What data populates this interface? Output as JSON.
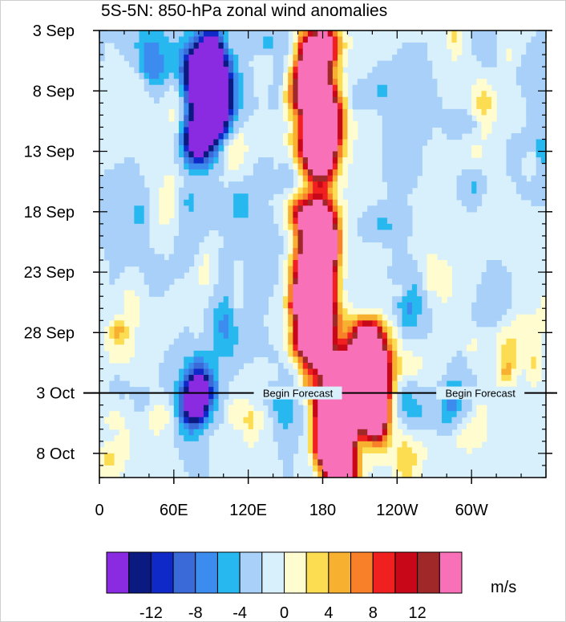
{
  "chart_data": {
    "type": "heatmap",
    "title": "5S-5N: 850-hPa zonal wind anomalies",
    "x_ticks": [
      {
        "label": "0",
        "lon": 0
      },
      {
        "label": "60E",
        "lon": 60
      },
      {
        "label": "120E",
        "lon": 120
      },
      {
        "label": "180",
        "lon": 180
      },
      {
        "label": "120W",
        "lon": 240
      },
      {
        "label": "60W",
        "lon": 300
      }
    ],
    "x_range_lon": [
      0,
      360
    ],
    "y_ticks": [
      {
        "label": "3 Sep",
        "day": 0
      },
      {
        "label": "8 Sep",
        "day": 5
      },
      {
        "label": "13 Sep",
        "day": 10
      },
      {
        "label": "18 Sep",
        "day": 15
      },
      {
        "label": "23 Sep",
        "day": 20
      },
      {
        "label": "28 Sep",
        "day": 25
      },
      {
        "label": "3 Oct",
        "day": 30
      },
      {
        "label": "8 Oct",
        "day": 35
      }
    ],
    "y_range_days": [
      0,
      37
    ],
    "forecast_start_day": 30,
    "forecast_label": "Begin Forecast",
    "units": "m/s",
    "colorbar": {
      "colors": [
        "#8a2be2",
        "#0a1a80",
        "#0f28c8",
        "#3a6ad8",
        "#3c8cf0",
        "#28b8f0",
        "#a8d0f8",
        "#d8f0fc",
        "#fffcd0",
        "#fcdc50",
        "#f8b030",
        "#f88028",
        "#f02020",
        "#c80818",
        "#a02828",
        "#f870b8"
      ],
      "tick_labels": [
        "-12",
        "-8",
        "-4",
        "0",
        "4",
        "8",
        "12"
      ]
    },
    "features": [
      {
        "kind": "westerly",
        "lon": 170,
        "day_start": 15,
        "day_end": 27,
        "peak": 14
      },
      {
        "kind": "westerly",
        "lon": 175,
        "day_start": 0,
        "day_end": 12,
        "peak": 9
      },
      {
        "kind": "westerly",
        "lon": 190,
        "day_start": 28,
        "day_end": 37,
        "peak": 15
      },
      {
        "kind": "westerly",
        "lon": 215,
        "day_start": 25,
        "day_end": 33,
        "peak": 9
      },
      {
        "kind": "easterly",
        "lon": 85,
        "day_start": 1,
        "day_end": 10,
        "peak": -9
      },
      {
        "kind": "easterly",
        "lon": 75,
        "day_start": 29,
        "day_end": 32,
        "peak": -7
      }
    ]
  }
}
